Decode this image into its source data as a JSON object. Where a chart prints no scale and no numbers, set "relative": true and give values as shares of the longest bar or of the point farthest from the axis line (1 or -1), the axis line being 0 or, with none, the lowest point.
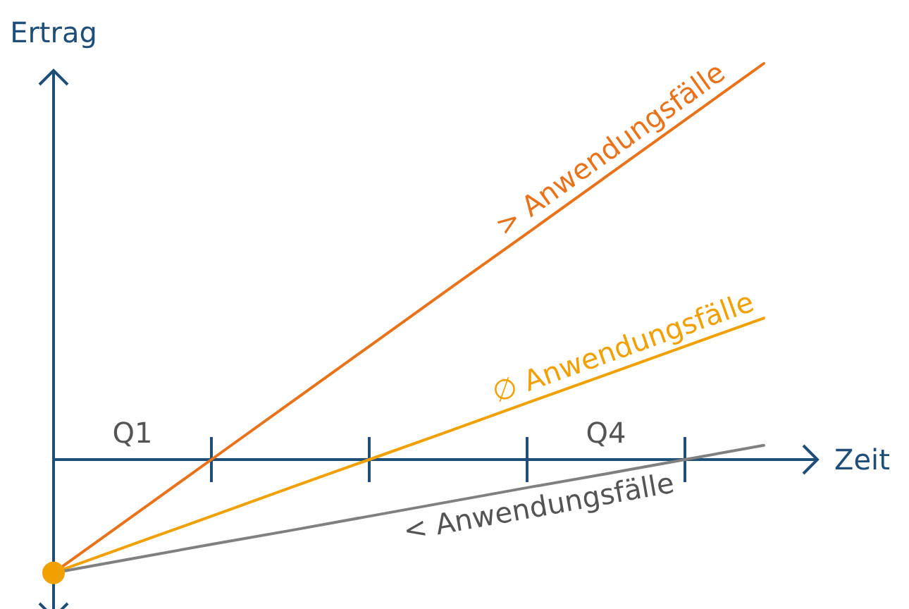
{
  "chart_data": {
    "type": "line",
    "relative": true,
    "xlabel": "Zeit",
    "ylabel": "Ertrag",
    "categories": [
      null,
      "Q1",
      null,
      null,
      null,
      null,
      null,
      "Q4",
      null,
      null
    ],
    "series": [
      {
        "name": "> Anwendungsfälle",
        "color": "#e8731a",
        "values": [
          -0.286,
          -0.143,
          0,
          0.143,
          0.286,
          0.429,
          0.571,
          0.714,
          0.857,
          1
        ]
      },
      {
        "name": "∅ Anwendungsfälle",
        "color": "#f0a000",
        "values": [
          -0.286,
          -0.214,
          -0.143,
          -0.071,
          0,
          0.071,
          0.143,
          0.214,
          0.286,
          0.357
        ]
      },
      {
        "name": "< Anwendungsfälle",
        "color": "#808080",
        "values": [
          -0.286,
          -0.25,
          -0.214,
          -0.179,
          -0.143,
          -0.107,
          -0.071,
          -0.036,
          0,
          0.036
        ]
      },
      {
        "type": "scatter",
        "color": "#f0a000",
        "values": [
          -0.286,
          null,
          null,
          null,
          null,
          null,
          null,
          null,
          null,
          null
        ]
      }
    ]
  }
}
